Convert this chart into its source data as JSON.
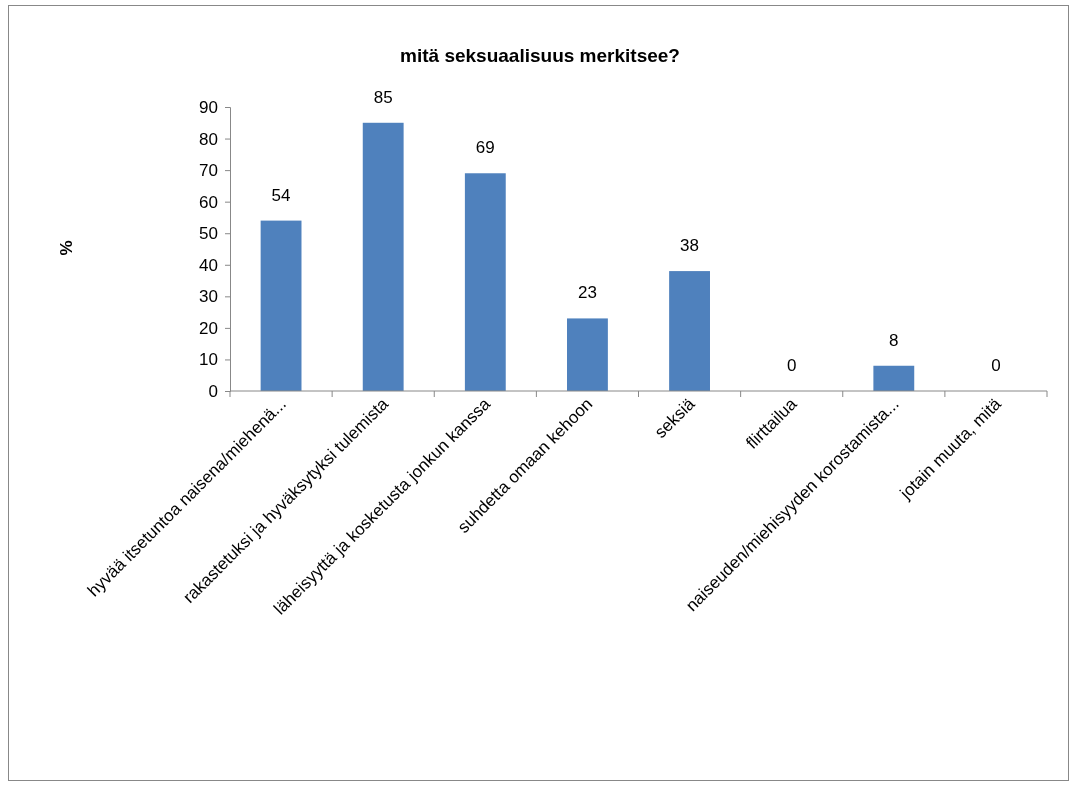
{
  "chart_data": {
    "type": "bar",
    "title": "mitä seksuaalisuus merkitsee?",
    "ylabel": "%",
    "categories": [
      "hyvää itsetuntoa naisena/miehenä...",
      "rakastetuksi ja hyväksytyksi tulemista",
      "läheisyyttä ja kosketusta jonkun kanssa",
      "suhdetta omaan kehoon",
      "seksiä",
      "flirttailua",
      "naiseuden/miehisyyden korostamista...",
      "jotain muuta, mitä"
    ],
    "values": [
      54,
      85,
      69,
      23,
      38,
      0,
      8,
      0
    ],
    "color": "#4f81bd",
    "ylim": [
      0,
      90
    ],
    "yticks": [
      0,
      10,
      20,
      30,
      40,
      50,
      60,
      70,
      80,
      90
    ],
    "data_labels": true
  }
}
